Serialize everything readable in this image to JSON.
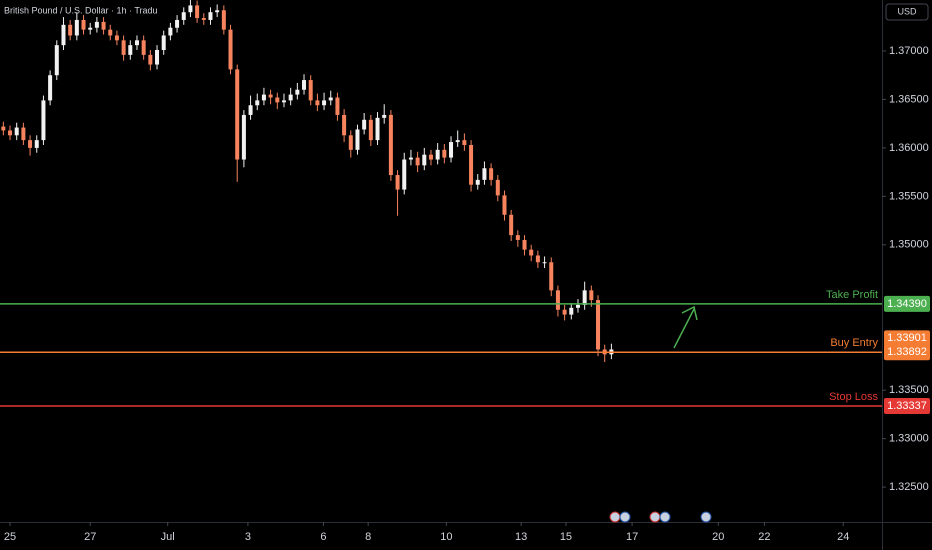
{
  "chart_data": {
    "type": "candlestick",
    "title": "British Pound / U.S. Dollar · 1h · Tradu",
    "currency": "USD",
    "up_color": "#f2f2f2",
    "down_color": "#f7845e",
    "ylim": [
      1.3214,
      1.37526
    ],
    "yticks": [
      {
        "value": 1.37,
        "label": "1.37000"
      },
      {
        "value": 1.365,
        "label": "1.36500"
      },
      {
        "value": 1.36,
        "label": "1.36000"
      },
      {
        "value": 1.355,
        "label": "1.35500"
      },
      {
        "value": 1.35,
        "label": "1.35000"
      },
      {
        "value": 1.335,
        "label": "1.33500"
      },
      {
        "value": 1.33,
        "label": "1.33000"
      },
      {
        "value": 1.325,
        "label": "1.32500"
      }
    ],
    "xlim": [
      -0.5,
      131.5
    ],
    "xticks": [
      {
        "value": 1.0,
        "label": "25"
      },
      {
        "value": 13,
        "label": "27"
      },
      {
        "value": 24.6,
        "label": "Jul"
      },
      {
        "value": 36.6,
        "label": "3"
      },
      {
        "value": 47.9,
        "label": "6"
      },
      {
        "value": 54.6,
        "label": "8"
      },
      {
        "value": 66.3,
        "label": "10"
      },
      {
        "value": 77.5,
        "label": "13"
      },
      {
        "value": 84.2,
        "label": "15"
      },
      {
        "value": 94.1,
        "label": "17"
      },
      {
        "value": 107,
        "label": "20"
      },
      {
        "value": 113.9,
        "label": "22"
      },
      {
        "value": 125.7,
        "label": "24"
      }
    ],
    "open": [
      1.3622,
      1.3618,
      1.3613,
      1.3621,
      1.3608,
      1.36,
      1.3608,
      1.3649,
      1.3675,
      1.3706,
      1.3727,
      1.3716,
      1.3732,
      1.3722,
      1.3724,
      1.373,
      1.3722,
      1.3716,
      1.3711,
      1.3696,
      1.3706,
      1.3711,
      1.3696,
      1.3686,
      1.3701,
      1.3716,
      1.3724,
      1.3732,
      1.374,
      1.3747,
      1.3734,
      1.3732,
      1.374,
      1.3742,
      1.3722,
      1.3681,
      1.3588,
      1.3634,
      1.3644,
      1.3649,
      1.3655,
      1.3652,
      1.3647,
      1.3649,
      1.3655,
      1.366,
      1.367,
      1.3649,
      1.3644,
      1.3649,
      1.3652,
      1.3634,
      1.3613,
      1.3598,
      1.3619,
      1.3629,
      1.3608,
      1.3631,
      1.3634,
      1.3572,
      1.3557,
      1.3588,
      1.359,
      1.3582,
      1.3593,
      1.3588,
      1.3598,
      1.359,
      1.3606,
      1.3608,
      1.3603,
      1.3562,
      1.3567,
      1.3579,
      1.3567,
      1.3551,
      1.3531,
      1.351,
      1.3505,
      1.3495,
      1.3489,
      1.3482,
      1.3482,
      1.3453,
      1.3433,
      1.3428,
      1.3435,
      1.3438,
      1.3453,
      1.3443,
      1.3392,
      1.3387
    ],
    "high": [
      1.3627,
      1.3623,
      1.3626,
      1.3626,
      1.3613,
      1.3613,
      1.3654,
      1.368,
      1.3711,
      1.3735,
      1.3732,
      1.374,
      1.3737,
      1.3729,
      1.3735,
      1.3735,
      1.3727,
      1.3721,
      1.3716,
      1.3711,
      1.3716,
      1.3716,
      1.3701,
      1.3706,
      1.3721,
      1.3729,
      1.3737,
      1.3745,
      1.3753,
      1.3752,
      1.3739,
      1.3745,
      1.3748,
      1.3747,
      1.3727,
      1.3686,
      1.3639,
      1.3654,
      1.3656,
      1.3662,
      1.366,
      1.3657,
      1.3656,
      1.3662,
      1.3667,
      1.3676,
      1.3675,
      1.3656,
      1.3657,
      1.3659,
      1.3657,
      1.364,
      1.3618,
      1.3624,
      1.3636,
      1.3634,
      1.3637,
      1.3645,
      1.3639,
      1.3577,
      1.3595,
      1.3598,
      1.3596,
      1.36,
      1.3598,
      1.3605,
      1.3604,
      1.3612,
      1.3618,
      1.3615,
      1.3608,
      1.3573,
      1.3586,
      1.3584,
      1.3572,
      1.3556,
      1.3536,
      1.3515,
      1.351,
      1.35,
      1.3494,
      1.3488,
      1.3487,
      1.3458,
      1.3438,
      1.344,
      1.3444,
      1.3462,
      1.3458,
      1.3448,
      1.3397,
      1.3398
    ],
    "low": [
      1.3613,
      1.3608,
      1.3608,
      1.3603,
      1.3592,
      1.3595,
      1.3603,
      1.3644,
      1.367,
      1.3701,
      1.3711,
      1.3711,
      1.3717,
      1.3717,
      1.3719,
      1.3717,
      1.3711,
      1.3706,
      1.369,
      1.3691,
      1.3701,
      1.3691,
      1.368,
      1.3681,
      1.3696,
      1.3711,
      1.3719,
      1.3727,
      1.3735,
      1.3729,
      1.3727,
      1.3727,
      1.3735,
      1.3717,
      1.3676,
      1.3565,
      1.358,
      1.3629,
      1.3639,
      1.3644,
      1.3645,
      1.364,
      1.3642,
      1.3644,
      1.365,
      1.3655,
      1.3644,
      1.3638,
      1.3639,
      1.3644,
      1.3628,
      1.3606,
      1.359,
      1.3593,
      1.3614,
      1.3602,
      1.3603,
      1.3625,
      1.3566,
      1.353,
      1.3552,
      1.3582,
      1.3575,
      1.3577,
      1.3582,
      1.3583,
      1.3584,
      1.3585,
      1.3601,
      1.3597,
      1.3555,
      1.3557,
      1.3562,
      1.3561,
      1.3545,
      1.3525,
      1.3504,
      1.3498,
      1.3489,
      1.3483,
      1.3476,
      1.3476,
      1.3447,
      1.3426,
      1.3422,
      1.3423,
      1.343,
      1.3433,
      1.3436,
      1.3385,
      1.3379,
      1.3382
    ],
    "close": [
      1.3618,
      1.3613,
      1.3621,
      1.3608,
      1.36,
      1.3608,
      1.3649,
      1.3675,
      1.3706,
      1.3727,
      1.3716,
      1.3732,
      1.3722,
      1.3724,
      1.373,
      1.3722,
      1.3716,
      1.3711,
      1.3696,
      1.3706,
      1.3711,
      1.3696,
      1.3686,
      1.3701,
      1.3716,
      1.3724,
      1.3732,
      1.374,
      1.3747,
      1.3734,
      1.3732,
      1.374,
      1.3742,
      1.3722,
      1.3681,
      1.3588,
      1.3634,
      1.3644,
      1.3649,
      1.3655,
      1.3652,
      1.3647,
      1.3649,
      1.3655,
      1.366,
      1.367,
      1.3649,
      1.3644,
      1.3649,
      1.3652,
      1.3634,
      1.3613,
      1.3598,
      1.3619,
      1.3629,
      1.3608,
      1.3631,
      1.3634,
      1.3572,
      1.3557,
      1.3588,
      1.359,
      1.3582,
      1.3593,
      1.3588,
      1.3598,
      1.359,
      1.3606,
      1.3608,
      1.3603,
      1.3562,
      1.3567,
      1.3579,
      1.3567,
      1.3551,
      1.3531,
      1.351,
      1.3505,
      1.3495,
      1.3489,
      1.3482,
      1.3482,
      1.3453,
      1.3433,
      1.3428,
      1.3435,
      1.3438,
      1.3453,
      1.3443,
      1.3392,
      1.3387,
      1.3392
    ],
    "last_price": 1.33901,
    "levels": [
      {
        "name": "Take Profit",
        "value": 1.3439,
        "value_label": "1.34390",
        "color": "#4caf50"
      },
      {
        "name": "Buy Entry",
        "value": 1.33892,
        "value_label": "1.33892",
        "color": "#f57c33"
      },
      {
        "name": "Stop Loss",
        "value": 1.33337,
        "value_label": "1.33337",
        "color": "#e53935"
      }
    ]
  }
}
